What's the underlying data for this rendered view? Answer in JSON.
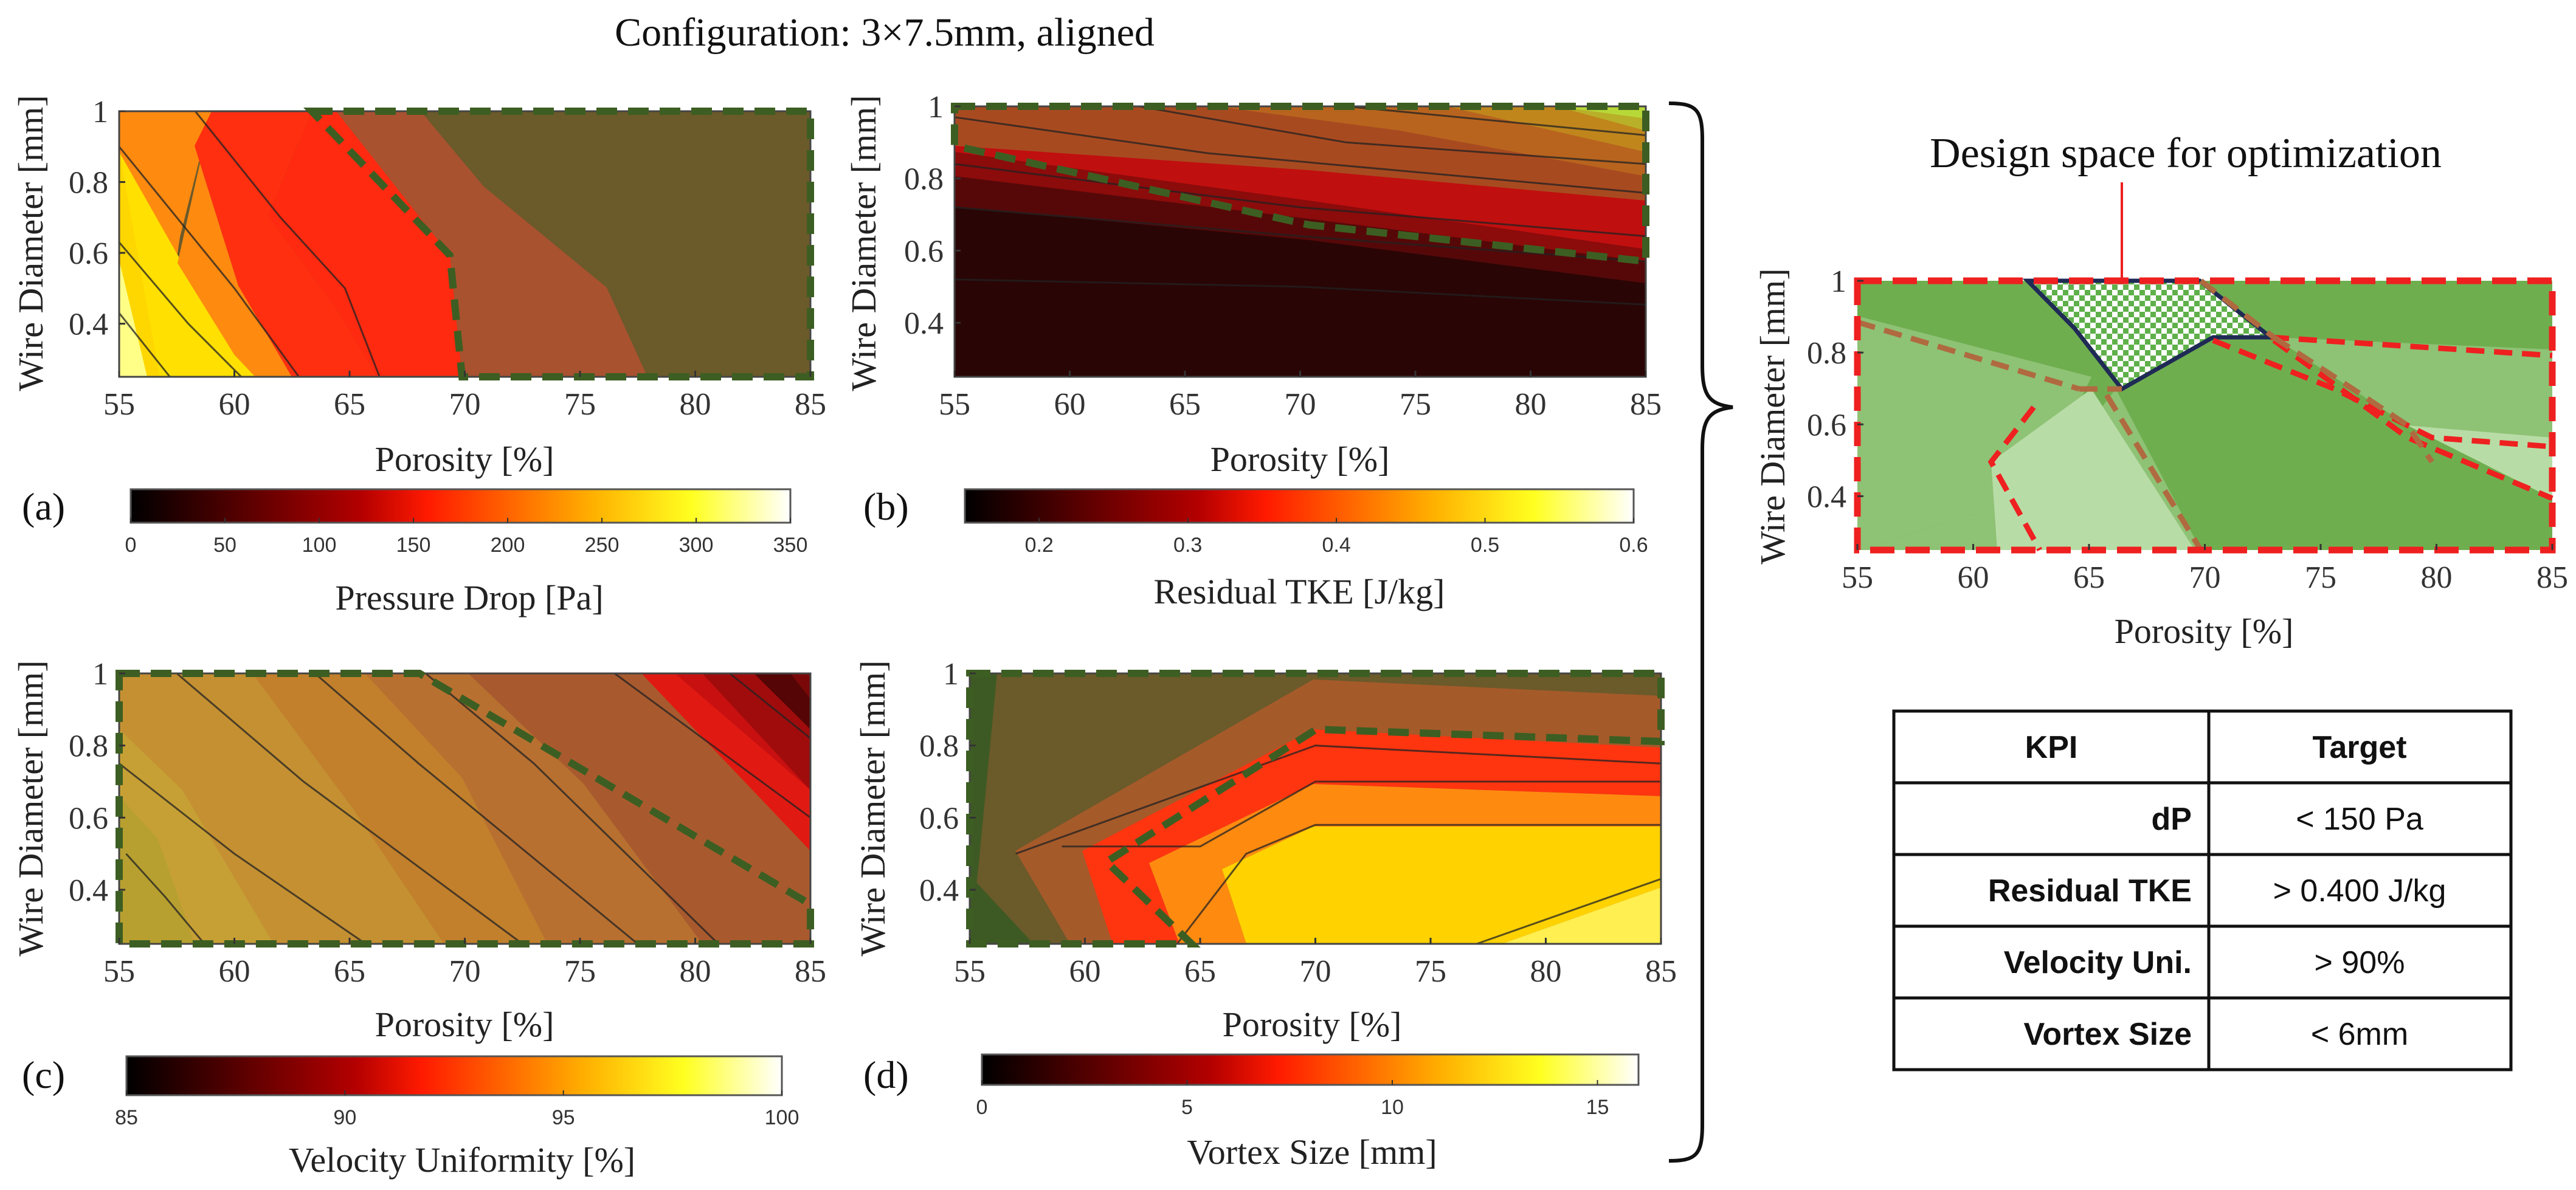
{
  "figure_title": "Configuration: 3×7.5mm, aligned",
  "design_space_title": "Design space for optimization",
  "colors": {
    "in_region": "#6b5a2a",
    "boundary": "#2e5a1b",
    "ds_green_dark": "#6fae4f",
    "ds_green_mid": "#8ec275",
    "ds_green_light": "#b8dca6",
    "ds_red": "#ee2020",
    "ds_brown": "#b06a40",
    "ds_navy": "#1f2a55"
  },
  "kpi_table": {
    "headers": [
      "KPI",
      "Target"
    ],
    "rows": [
      {
        "kpi": "dP",
        "target": "< 150 Pa"
      },
      {
        "kpi": "Residual TKE",
        "target": "> 0.400 J/kg"
      },
      {
        "kpi": "Velocity Uni.",
        "target": "> 90%"
      },
      {
        "kpi": "Vortex Size",
        "target": "< 6mm"
      }
    ]
  },
  "chart_data": [
    {
      "id": "a",
      "panel_label": "(a)",
      "type": "contour",
      "xlabel": "Porosity [%]",
      "ylabel": "Wire Diameter [mm]",
      "xlim": [
        55,
        85
      ],
      "ylim": [
        0.25,
        1.0
      ],
      "xticks": [
        55,
        60,
        65,
        70,
        75,
        80,
        85
      ],
      "yticks": [
        0.4,
        0.6,
        0.8,
        1
      ],
      "colorbar": {
        "label": "Pressure Drop [Pa]",
        "min": 0,
        "max": 350,
        "ticks": [
          0,
          50,
          100,
          150,
          200,
          250,
          300,
          350
        ]
      },
      "contour_levels_pa": [
        300,
        250,
        200,
        150
      ],
      "contour_lines": [
        [
          [
            55,
            0.43
          ],
          [
            57.2,
            0.25
          ]
        ],
        [
          [
            55,
            0.63
          ],
          [
            58,
            0.4
          ],
          [
            60.3,
            0.25
          ]
        ],
        [
          [
            55,
            0.9
          ],
          [
            60,
            0.5
          ],
          [
            62.8,
            0.25
          ]
        ],
        [
          [
            58.3,
            1.0
          ],
          [
            62,
            0.7
          ],
          [
            64.8,
            0.5
          ],
          [
            66.3,
            0.25
          ]
        ]
      ],
      "feasible_boundary": [
        [
          63.8,
          1.0
        ],
        [
          68,
          0.5
        ],
        [
          70.2,
          0.25
        ]
      ],
      "feasible_region": "dP < 150 Pa (right side)"
    },
    {
      "id": "b",
      "panel_label": "(b)",
      "type": "contour",
      "xlabel": "Porosity [%]",
      "ylabel": "Wire Diameter [mm]",
      "xlim": [
        55,
        85
      ],
      "ylim": [
        0.25,
        1.0
      ],
      "xticks": [
        55,
        60,
        65,
        70,
        75,
        80,
        85
      ],
      "yticks": [
        0.4,
        0.6,
        0.8,
        1
      ],
      "colorbar": {
        "label": "Residual TKE [J/kg]",
        "min": 0.15,
        "max": 0.6,
        "ticks": [
          0.2,
          0.3,
          0.4,
          0.5,
          0.6
        ]
      },
      "contour_lines": [
        [
          [
            55,
            0.52
          ],
          [
            70,
            0.5
          ],
          [
            85,
            0.45
          ]
        ],
        [
          [
            55,
            0.72
          ],
          [
            70,
            0.64
          ],
          [
            85,
            0.57
          ]
        ],
        [
          [
            55,
            0.84
          ],
          [
            70,
            0.72
          ],
          [
            85,
            0.64
          ]
        ],
        [
          [
            55,
            0.97
          ],
          [
            66,
            0.87
          ],
          [
            85,
            0.76
          ]
        ],
        [
          [
            63,
            1.0
          ],
          [
            72,
            0.9
          ],
          [
            85,
            0.84
          ]
        ],
        [
          [
            72,
            1.0
          ],
          [
            85,
            0.92
          ]
        ]
      ],
      "feasible_boundary": [
        [
          55,
          0.9
        ],
        [
          70,
          0.7
        ],
        [
          85,
          0.58
        ]
      ],
      "feasible_region": "Residual TKE > 0.400 J/kg (top)"
    },
    {
      "id": "c",
      "panel_label": "(c)",
      "type": "contour",
      "xlabel": "Porosity [%]",
      "ylabel": "Wire Diameter [mm]",
      "xlim": [
        55,
        85
      ],
      "ylim": [
        0.25,
        1.0
      ],
      "xticks": [
        55,
        60,
        65,
        70,
        75,
        80,
        85
      ],
      "yticks": [
        0.4,
        0.6,
        0.8,
        1
      ],
      "colorbar": {
        "label": "Velocity Uniformity [%]",
        "min": 85,
        "max": 100,
        "ticks": [
          85,
          90,
          95,
          100
        ]
      },
      "contour_lines": [
        [
          [
            55.3,
            0.5
          ],
          [
            57,
            0.38
          ],
          [
            58.7,
            0.25
          ]
        ],
        [
          [
            55,
            0.75
          ],
          [
            60,
            0.5
          ],
          [
            65.7,
            0.25
          ]
        ],
        [
          [
            57.5,
            1.0
          ],
          [
            63,
            0.7
          ],
          [
            72.5,
            0.25
          ]
        ],
        [
          [
            63.5,
            1.0
          ],
          [
            68,
            0.75
          ],
          [
            77.5,
            0.25
          ]
        ],
        [
          [
            68.3,
            1.0
          ],
          [
            73,
            0.75
          ],
          [
            81,
            0.25
          ]
        ],
        [
          [
            76.5,
            1.0
          ],
          [
            85,
            0.6
          ]
        ],
        [
          [
            81.5,
            1.0
          ],
          [
            85,
            0.82
          ]
        ]
      ],
      "feasible_boundary": [
        [
          68.3,
          1.0
        ],
        [
          85,
          0.36
        ]
      ],
      "feasible_region": "Velocity Uni. > 90% (lower left)"
    },
    {
      "id": "d",
      "panel_label": "(d)",
      "type": "contour",
      "xlabel": "Porosity [%]",
      "ylabel": "Wire Diameter [mm]",
      "xlim": [
        55,
        85
      ],
      "ylim": [
        0.25,
        1.0
      ],
      "xticks": [
        55,
        60,
        65,
        70,
        75,
        80,
        85
      ],
      "yticks": [
        0.4,
        0.6,
        0.8,
        1
      ],
      "colorbar": {
        "label": "Vortex Size [mm]",
        "min": 0,
        "max": 16,
        "ticks": [
          0,
          5,
          10,
          15
        ]
      },
      "contour_lines": [
        [
          [
            57,
            0.5
          ],
          [
            70,
            0.8
          ],
          [
            85,
            0.75
          ]
        ],
        [
          [
            59,
            0.52
          ],
          [
            65,
            0.52
          ],
          [
            70,
            0.7
          ],
          [
            85,
            0.7
          ]
        ],
        [
          [
            64,
            0.25
          ],
          [
            67,
            0.5
          ],
          [
            70,
            0.58
          ],
          [
            85,
            0.58
          ]
        ],
        [
          [
            77,
            0.25
          ],
          [
            85,
            0.43
          ]
        ]
      ],
      "feasible_boundary": [
        [
          55,
          0.97
        ],
        [
          56,
          1.0
        ],
        [
          56,
          0.3
        ],
        [
          55,
          0.25
        ]
      ],
      "feasible_boundary_2": [
        [
          61,
          0.5
        ],
        [
          70,
          0.85
        ],
        [
          85,
          0.82
        ]
      ],
      "feasible_region": "Vortex Size < 6mm (upper left)"
    },
    {
      "id": "design_space",
      "type": "region_overlay",
      "title": "Design space for optimization",
      "xlabel": "Porosity [%]",
      "ylabel": "Wire Diameter [mm]",
      "xlim": [
        55,
        85
      ],
      "ylim": [
        0.25,
        1.0
      ],
      "xticks": [
        55,
        60,
        65,
        70,
        75,
        80,
        85
      ],
      "yticks": [
        0.4,
        0.6,
        0.8,
        1
      ],
      "optimization_region": [
        [
          62.5,
          1.0
        ],
        [
          70.5,
          1.0
        ],
        [
          72.5,
          0.84
        ],
        [
          70,
          0.84
        ],
        [
          66.5,
          0.7
        ],
        [
          65,
          0.83
        ]
      ]
    }
  ]
}
